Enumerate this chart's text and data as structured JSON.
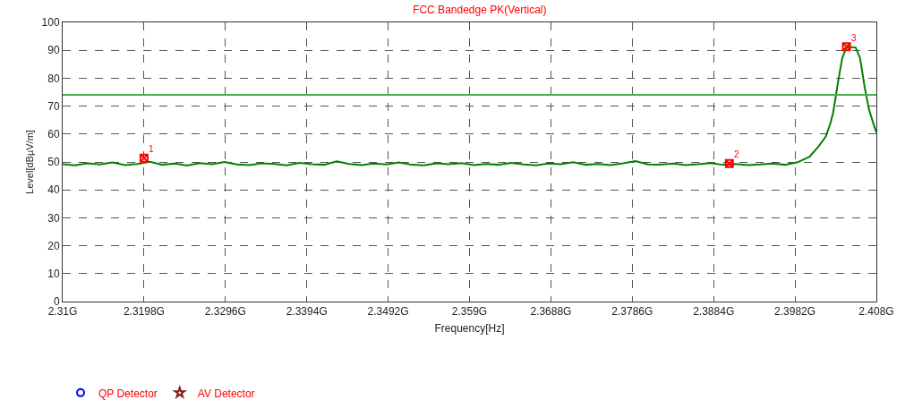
{
  "chart_data": {
    "type": "line",
    "title": "FCC Bandedge PK(Vertical)",
    "xlabel": "Frequency[Hz]",
    "ylabel": "Level[dBµV/m]",
    "xlim": [
      2.31,
      2.408
    ],
    "xticks": [
      {
        "value": 2.31,
        "label": "2.31G"
      },
      {
        "value": 2.3198,
        "label": "2.3198G"
      },
      {
        "value": 2.3296,
        "label": "2.3296G"
      },
      {
        "value": 2.3394,
        "label": "2.3394G"
      },
      {
        "value": 2.3492,
        "label": "2.3492G"
      },
      {
        "value": 2.359,
        "label": "2.359G"
      },
      {
        "value": 2.3688,
        "label": "2.3688G"
      },
      {
        "value": 2.3786,
        "label": "2.3786G"
      },
      {
        "value": 2.3884,
        "label": "2.3884G"
      },
      {
        "value": 2.3982,
        "label": "2.3982G"
      },
      {
        "value": 2.408,
        "label": "2.408G"
      }
    ],
    "ylim": [
      0,
      100
    ],
    "yticks": [
      0,
      10,
      20,
      30,
      40,
      50,
      60,
      70,
      80,
      90,
      100
    ],
    "grid": true,
    "legend": "bottom left",
    "series": [
      {
        "color": "#008000",
        "marker": "none",
        "x": [
          2.31,
          2.3115,
          2.313,
          2.3145,
          2.316,
          2.3175,
          2.319,
          2.3205,
          2.322,
          2.3235,
          2.325,
          2.3265,
          2.328,
          2.3295,
          2.331,
          2.3325,
          2.334,
          2.3355,
          2.337,
          2.3385,
          2.34,
          2.3415,
          2.343,
          2.3445,
          2.346,
          2.3475,
          2.349,
          2.3505,
          2.352,
          2.3535,
          2.355,
          2.3565,
          2.358,
          2.3595,
          2.361,
          2.3625,
          2.364,
          2.3655,
          2.367,
          2.3685,
          2.37,
          2.3715,
          2.373,
          2.3745,
          2.376,
          2.3775,
          2.379,
          2.3805,
          2.382,
          2.3835,
          2.385,
          2.3865,
          2.388,
          2.3895,
          2.391,
          2.3925,
          2.394,
          2.3955,
          2.397,
          2.39852,
          2.39995,
          2.40102,
          2.40191,
          2.40245,
          2.40281,
          2.40335,
          2.40389,
          2.40443,
          2.4055,
          2.40604,
          2.40658,
          2.40711,
          2.40765,
          2.408
        ],
        "values": [
          49.2,
          48.8,
          49.5,
          49.1,
          49.8,
          48.9,
          49.3,
          50.1,
          49.0,
          49.4,
          48.7,
          49.6,
          49.2,
          50.0,
          49.1,
          48.9,
          49.5,
          49.3,
          48.8,
          49.7,
          49.2,
          49.0,
          50.2,
          49.3,
          48.9,
          49.4,
          49.1,
          49.8,
          49.0,
          48.8,
          49.5,
          49.2,
          49.6,
          48.9,
          49.3,
          49.0,
          49.7,
          49.1,
          48.8,
          49.4,
          49.2,
          49.9,
          49.0,
          49.3,
          48.9,
          49.5,
          50.3,
          49.1,
          49.0,
          49.4,
          48.9,
          49.2,
          49.6,
          49.0,
          49.3,
          48.9,
          49.1,
          49.4,
          49.0,
          49.9,
          51.9,
          55.5,
          59.1,
          63.7,
          67.8,
          78,
          87.2,
          91.3,
          91,
          87.2,
          77,
          68.8,
          63.7,
          60.6
        ]
      },
      {
        "type": "scatter",
        "color": "#ff0000",
        "marker": "cross",
        "x": [
          2.3198,
          2.3903,
          2.4044
        ],
        "values": [
          51.4,
          49.4,
          91.3
        ]
      },
      {
        "type": "scatter",
        "name": "QP Detector",
        "color": "#0000ff",
        "marker": "circle"
      },
      {
        "type": "scatter",
        "name": "AV Detector",
        "color": "#8b1a1a",
        "marker": "star"
      }
    ],
    "ref_lines": [
      {
        "axis": "y",
        "value": 74,
        "color": "#4caf50"
      }
    ],
    "annotations": [
      {
        "text": "1",
        "x": 2.3198,
        "y": 51.4
      },
      {
        "text": "2",
        "x": 2.3903,
        "y": 49.4
      },
      {
        "text": "3",
        "x": 2.4044,
        "y": 91.3
      }
    ]
  }
}
